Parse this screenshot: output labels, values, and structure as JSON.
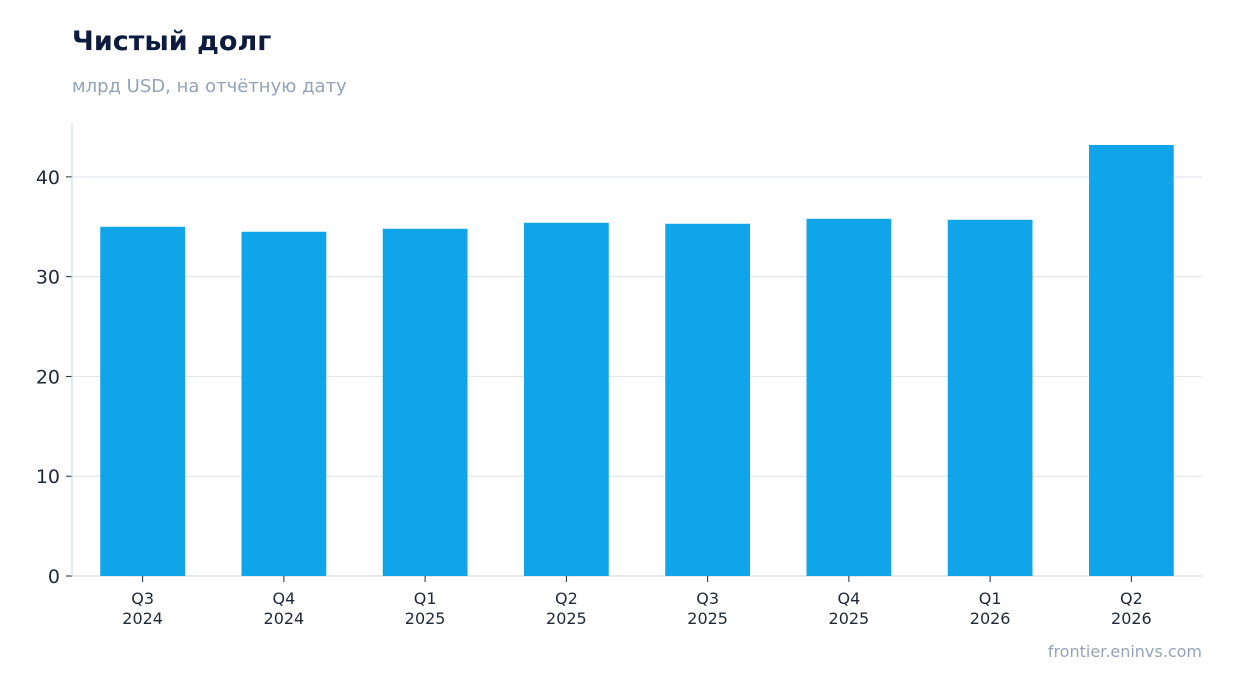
{
  "title": "Чистый долг",
  "subtitle": "млрд USD, на отчётную дату",
  "source": "frontier.eninvs.com",
  "chart_data": {
    "type": "bar",
    "categories": [
      [
        "Q3",
        "2024"
      ],
      [
        "Q4",
        "2024"
      ],
      [
        "Q1",
        "2025"
      ],
      [
        "Q2",
        "2025"
      ],
      [
        "Q3",
        "2025"
      ],
      [
        "Q4",
        "2025"
      ],
      [
        "Q1",
        "2026"
      ],
      [
        "Q2",
        "2026"
      ]
    ],
    "values": [
      35.0,
      34.5,
      34.8,
      35.4,
      35.3,
      35.8,
      35.7,
      43.2
    ],
    "yticks": [
      0,
      10,
      20,
      30,
      40
    ],
    "ylim": [
      0,
      45.4
    ],
    "grid": true,
    "bar_color": "#10a5e8",
    "grid_color": "#e2e8f0",
    "axis_color": "#cbd5e1"
  }
}
